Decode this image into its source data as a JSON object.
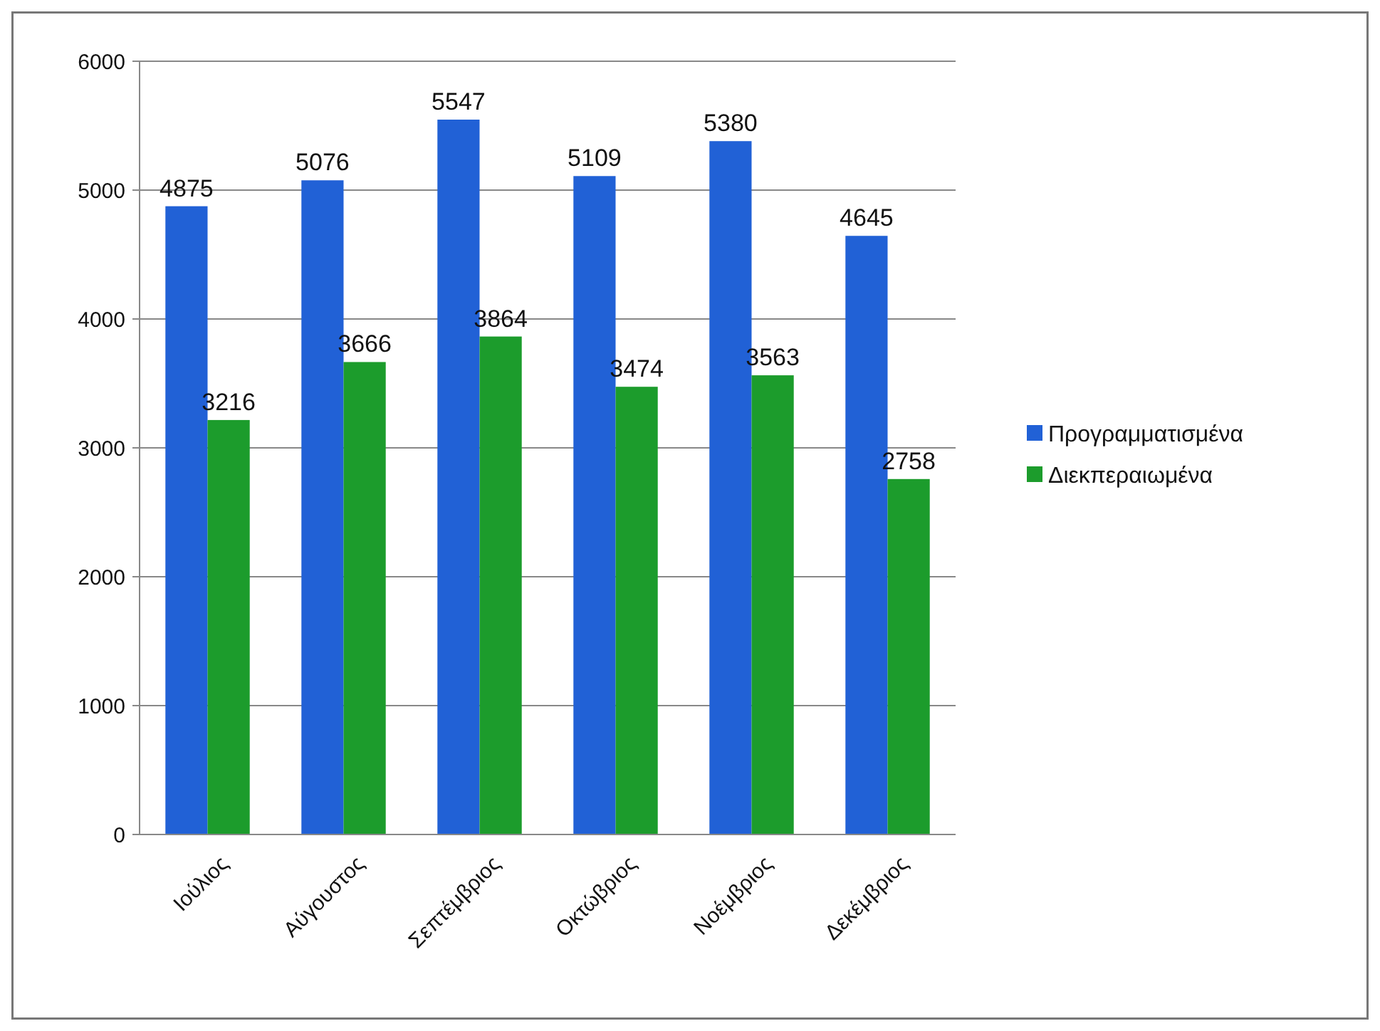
{
  "chart_data": {
    "type": "bar",
    "categories": [
      "Ιούλιος",
      "Αύγουστος",
      "Σεπτέμβριος",
      "Οκτώβριος",
      "Νοέμβριος",
      "Δεκέμβριος"
    ],
    "series": [
      {
        "name": "Προγραμματισμένα",
        "color": "#2161d6",
        "values": [
          4875,
          5076,
          5547,
          5109,
          5380,
          4645
        ]
      },
      {
        "name": "Διεκπεραιωμένα",
        "color": "#1c9c2c",
        "values": [
          3216,
          3666,
          3864,
          3474,
          3563,
          2758
        ]
      }
    ],
    "ylim": [
      0,
      6000
    ],
    "yticks": [
      0,
      1000,
      2000,
      3000,
      4000,
      5000,
      6000
    ],
    "grid": "y",
    "legend": "right",
    "data_labels": true
  }
}
